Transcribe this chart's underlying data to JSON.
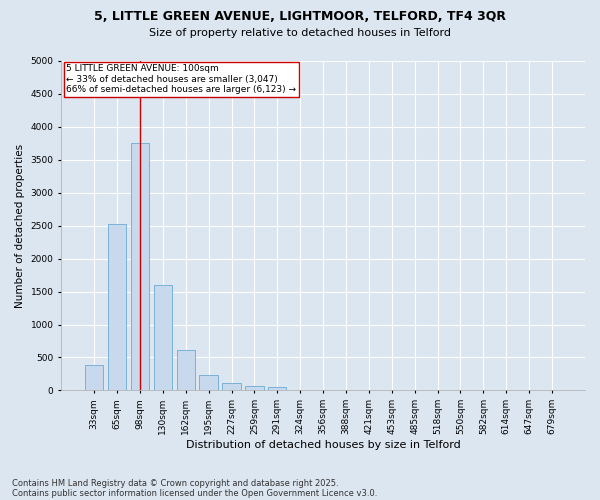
{
  "title_line1": "5, LITTLE GREEN AVENUE, LIGHTMOOR, TELFORD, TF4 3QR",
  "title_line2": "Size of property relative to detached houses in Telford",
  "xlabel": "Distribution of detached houses by size in Telford",
  "ylabel": "Number of detached properties",
  "categories": [
    "33sqm",
    "65sqm",
    "98sqm",
    "130sqm",
    "162sqm",
    "195sqm",
    "227sqm",
    "259sqm",
    "291sqm",
    "324sqm",
    "356sqm",
    "388sqm",
    "421sqm",
    "453sqm",
    "485sqm",
    "518sqm",
    "550sqm",
    "582sqm",
    "614sqm",
    "647sqm",
    "679sqm"
  ],
  "values": [
    380,
    2530,
    3750,
    1600,
    620,
    230,
    120,
    60,
    50,
    0,
    0,
    0,
    0,
    0,
    0,
    0,
    0,
    0,
    0,
    0,
    0
  ],
  "bar_color": "#c8d9ee",
  "bar_edge_color": "#6aaad4",
  "vline_x_index": 2,
  "vline_color": "#cc0000",
  "annotation_text": "5 LITTLE GREEN AVENUE: 100sqm\n← 33% of detached houses are smaller (3,047)\n66% of semi-detached houses are larger (6,123) →",
  "annotation_box_facecolor": "#ffffff",
  "annotation_box_edgecolor": "#cc0000",
  "ylim": [
    0,
    5000
  ],
  "yticks": [
    0,
    500,
    1000,
    1500,
    2000,
    2500,
    3000,
    3500,
    4000,
    4500,
    5000
  ],
  "footer_line1": "Contains HM Land Registry data © Crown copyright and database right 2025.",
  "footer_line2": "Contains public sector information licensed under the Open Government Licence v3.0.",
  "fig_facecolor": "#dce6f1",
  "plot_facecolor": "#dce6f1",
  "grid_color": "#ffffff",
  "title_fontsize": 9,
  "subtitle_fontsize": 8,
  "ylabel_fontsize": 7.5,
  "xlabel_fontsize": 8,
  "tick_fontsize": 6.5,
  "annot_fontsize": 6.5,
  "footer_fontsize": 6
}
